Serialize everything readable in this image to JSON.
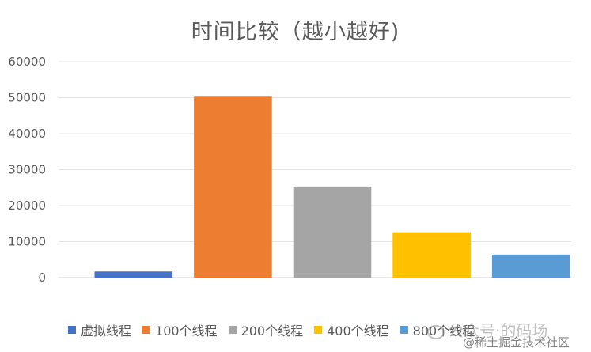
{
  "chart_data": {
    "type": "bar",
    "title": "时间比较（越小越好)",
    "xlabel": "",
    "ylabel": "",
    "ylim": [
      0,
      60000
    ],
    "yticks": [
      0,
      10000,
      20000,
      30000,
      40000,
      50000,
      60000
    ],
    "grid": true,
    "legend_position": "bottom",
    "categories": [
      "虚拟线程",
      "100个线程",
      "200个线程",
      "400个线程",
      "800个线程"
    ],
    "values": [
      1700,
      50500,
      25300,
      12600,
      6400
    ],
    "colors": [
      "#4472C4",
      "#ED7D31",
      "#A5A5A5",
      "#FFC000",
      "#5B9BD5"
    ]
  },
  "watermark": {
    "line1": "公众号·的码场",
    "line2": "@稀土掘金技术社区"
  }
}
